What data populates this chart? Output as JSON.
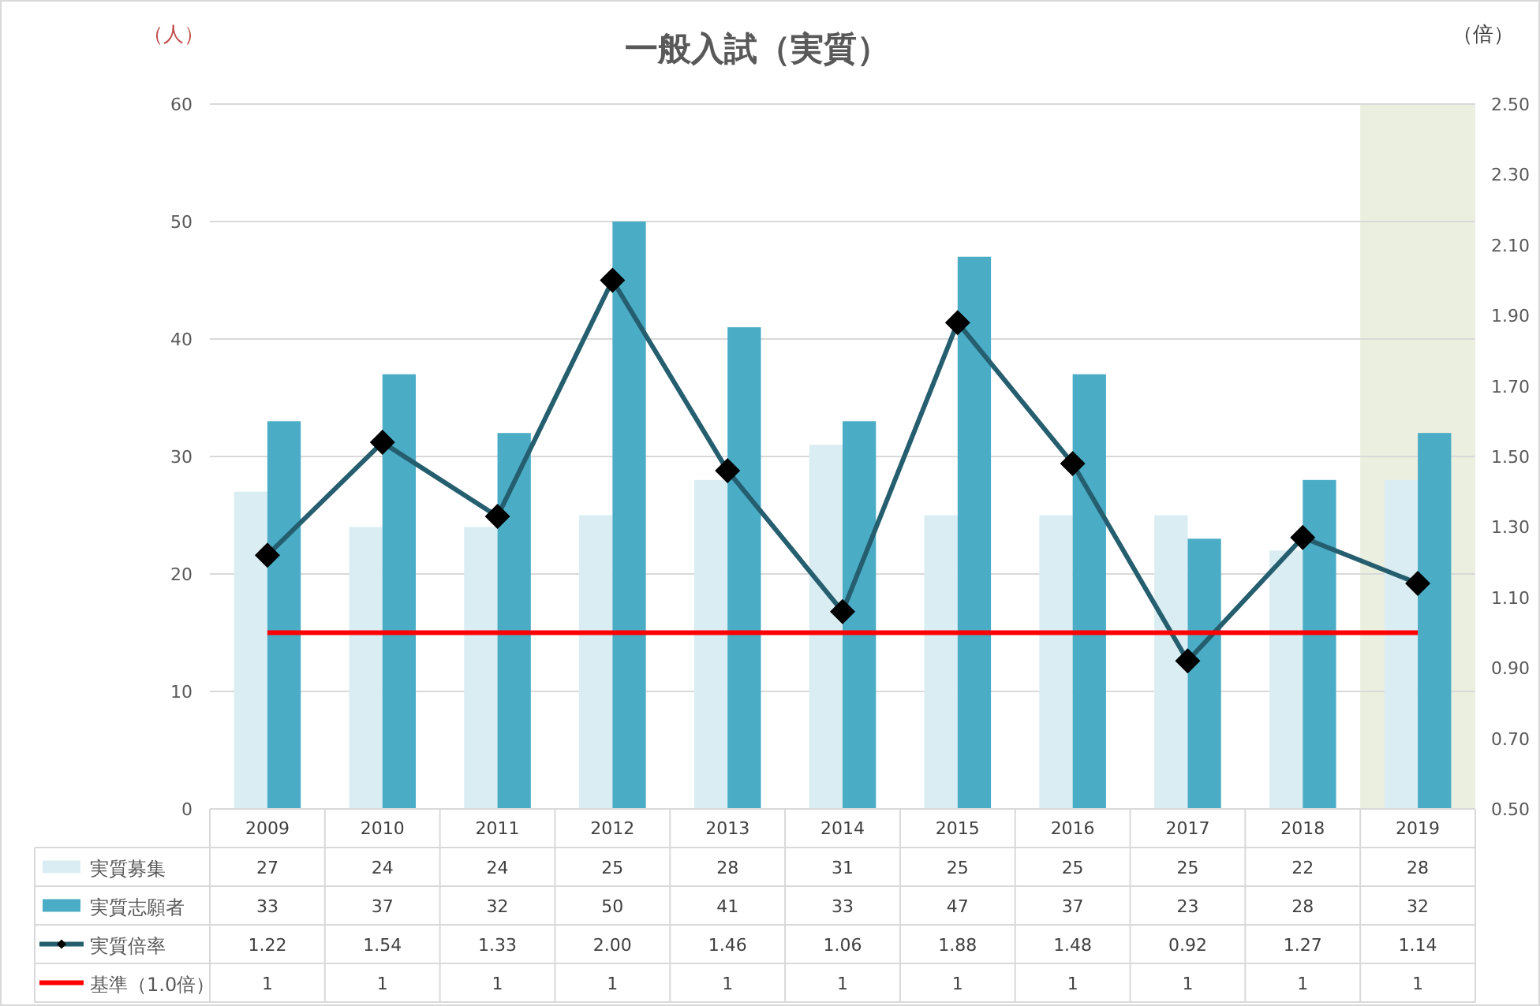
{
  "chart_data": {
    "type": "bar",
    "title": "一般入試（実質）",
    "ylabel": "（人）",
    "y2label": "（倍）",
    "categories": [
      "2009",
      "2010",
      "2011",
      "2012",
      "2013",
      "2014",
      "2015",
      "2016",
      "2017",
      "2018",
      "2019"
    ],
    "series": [
      {
        "name": "実質募集",
        "color": "#daedf3",
        "values": [
          27,
          24,
          24,
          25,
          28,
          31,
          25,
          25,
          25,
          22,
          28
        ]
      },
      {
        "name": "実質志願者",
        "color": "#4bacc6",
        "values": [
          33,
          37,
          32,
          50,
          41,
          33,
          47,
          37,
          23,
          28,
          32
        ]
      },
      {
        "name": "実質倍率",
        "type": "line",
        "axis": "y2",
        "color": "#255e6e",
        "marker": "diamond",
        "values": [
          1.22,
          1.54,
          1.33,
          2.0,
          1.46,
          1.06,
          1.88,
          1.48,
          0.92,
          1.27,
          1.14
        ],
        "value_labels": [
          "1.22",
          "1.54",
          "1.33",
          "2.00",
          "1.46",
          "1.06",
          "1.88",
          "1.48",
          "0.92",
          "1.27",
          "1.14"
        ]
      },
      {
        "name": "基準（1.0倍）",
        "type": "line",
        "axis": "y2",
        "color": "#ff0000",
        "marker": "none",
        "values": [
          1,
          1,
          1,
          1,
          1,
          1,
          1,
          1,
          1,
          1,
          1
        ]
      }
    ],
    "ylim": [
      0,
      60
    ],
    "yticks": [
      0,
      10,
      20,
      30,
      40,
      50,
      60
    ],
    "y2lim": [
      0.5,
      2.5
    ],
    "y2ticks": [
      {
        "value": 0.5,
        "label": "0.50"
      },
      {
        "value": 0.7,
        "label": "0.70"
      },
      {
        "value": 0.9,
        "label": "0.90"
      },
      {
        "value": 1.1,
        "label": "1.10"
      },
      {
        "value": 1.3,
        "label": "1.30"
      },
      {
        "value": 1.5,
        "label": "1.50"
      },
      {
        "value": 1.7,
        "label": "1.70"
      },
      {
        "value": 1.9,
        "label": "1.90"
      },
      {
        "value": 2.1,
        "label": "2.10"
      },
      {
        "value": 2.3,
        "label": "2.30"
      },
      {
        "value": 2.5,
        "label": "2.50"
      }
    ],
    "bands": [
      {
        "axis": "x",
        "from": "2019",
        "to": "2019",
        "color": "#ebefdf"
      }
    ],
    "grid": "y",
    "legend": "bottom",
    "data_labels": true
  }
}
